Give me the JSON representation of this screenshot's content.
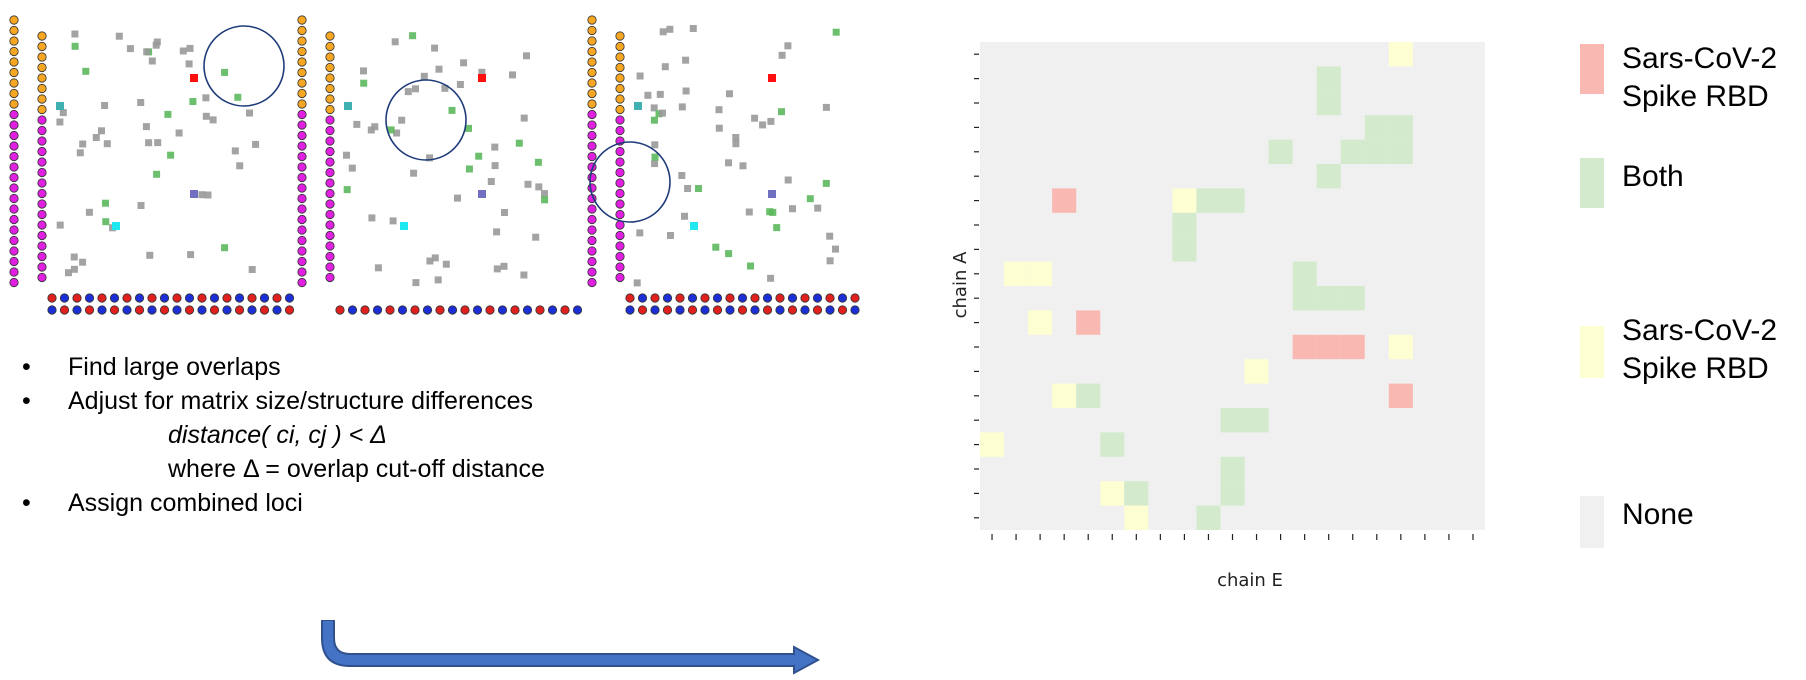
{
  "bullets": {
    "b1": "Find large overlaps",
    "b2": "Adjust for matrix size/structure differences",
    "formula": "distance( ci, cj ) < Δ",
    "where": "where Δ = overlap cut-off distance",
    "b3": "Assign combined loci",
    "marker": "•"
  },
  "chart_data": {
    "type": "heatmap",
    "xlabel": "chain E",
    "ylabel": "chain A",
    "colors": {
      "sars": "#f9b8b1",
      "both": "#d3ebcc",
      "sars2": "#fefed3",
      "none": "#f0f0f0"
    },
    "legend": [
      {
        "key": "sars",
        "text": [
          "Sars-CoV-2",
          "Spike RBD"
        ]
      },
      {
        "key": "both",
        "text": [
          "Both"
        ]
      },
      {
        "key": "sars2",
        "text": [
          "Sars-CoV-2",
          "Spike RBD"
        ]
      },
      {
        "key": "none",
        "text": [
          "None"
        ]
      }
    ],
    "n_rows": 20,
    "n_cols": 21,
    "cells": [
      {
        "row": 0,
        "col": 17,
        "value": "sars2"
      },
      {
        "row": 1,
        "col": 14,
        "value": "both"
      },
      {
        "row": 2,
        "col": 14,
        "value": "both"
      },
      {
        "row": 3,
        "col": 16,
        "value": "both"
      },
      {
        "row": 3,
        "col": 17,
        "value": "both"
      },
      {
        "row": 4,
        "col": 12,
        "value": "both"
      },
      {
        "row": 4,
        "col": 15,
        "value": "both"
      },
      {
        "row": 4,
        "col": 16,
        "value": "both"
      },
      {
        "row": 4,
        "col": 17,
        "value": "both"
      },
      {
        "row": 5,
        "col": 14,
        "value": "both"
      },
      {
        "row": 6,
        "col": 3,
        "value": "sars"
      },
      {
        "row": 6,
        "col": 8,
        "value": "sars2"
      },
      {
        "row": 6,
        "col": 9,
        "value": "both"
      },
      {
        "row": 6,
        "col": 10,
        "value": "both"
      },
      {
        "row": 7,
        "col": 8,
        "value": "both"
      },
      {
        "row": 8,
        "col": 8,
        "value": "both"
      },
      {
        "row": 9,
        "col": 1,
        "value": "sars2"
      },
      {
        "row": 9,
        "col": 2,
        "value": "sars2"
      },
      {
        "row": 9,
        "col": 13,
        "value": "both"
      },
      {
        "row": 10,
        "col": 13,
        "value": "both"
      },
      {
        "row": 10,
        "col": 14,
        "value": "both"
      },
      {
        "row": 10,
        "col": 15,
        "value": "both"
      },
      {
        "row": 11,
        "col": 2,
        "value": "sars2"
      },
      {
        "row": 11,
        "col": 4,
        "value": "sars"
      },
      {
        "row": 12,
        "col": 13,
        "value": "sars"
      },
      {
        "row": 12,
        "col": 14,
        "value": "sars"
      },
      {
        "row": 12,
        "col": 15,
        "value": "sars"
      },
      {
        "row": 12,
        "col": 17,
        "value": "sars2"
      },
      {
        "row": 13,
        "col": 11,
        "value": "sars2"
      },
      {
        "row": 14,
        "col": 3,
        "value": "sars2"
      },
      {
        "row": 14,
        "col": 4,
        "value": "both"
      },
      {
        "row": 14,
        "col": 17,
        "value": "sars"
      },
      {
        "row": 15,
        "col": 10,
        "value": "both"
      },
      {
        "row": 15,
        "col": 11,
        "value": "both"
      },
      {
        "row": 16,
        "col": 0,
        "value": "sars2"
      },
      {
        "row": 16,
        "col": 5,
        "value": "both"
      },
      {
        "row": 17,
        "col": 10,
        "value": "both"
      },
      {
        "row": 18,
        "col": 5,
        "value": "sars2"
      },
      {
        "row": 18,
        "col": 6,
        "value": "both"
      },
      {
        "row": 18,
        "col": 10,
        "value": "both"
      },
      {
        "row": 19,
        "col": 6,
        "value": "sars2"
      },
      {
        "row": 19,
        "col": 9,
        "value": "both"
      }
    ]
  },
  "panels": [
    {
      "left_cols": 2,
      "bottom_rows": 2,
      "circle": "top-right",
      "top_color": "#f5a623",
      "left_color": "#e020e0"
    },
    {
      "left_cols": 2,
      "bottom_rows": 1,
      "circle": "top-middle",
      "top_color": "#f5a623",
      "left_color": "#e020e0"
    },
    {
      "left_cols": 2,
      "bottom_rows": 2,
      "circle": "left-middle",
      "top_color": "#f5a623",
      "left_color": "#e020e0"
    }
  ]
}
